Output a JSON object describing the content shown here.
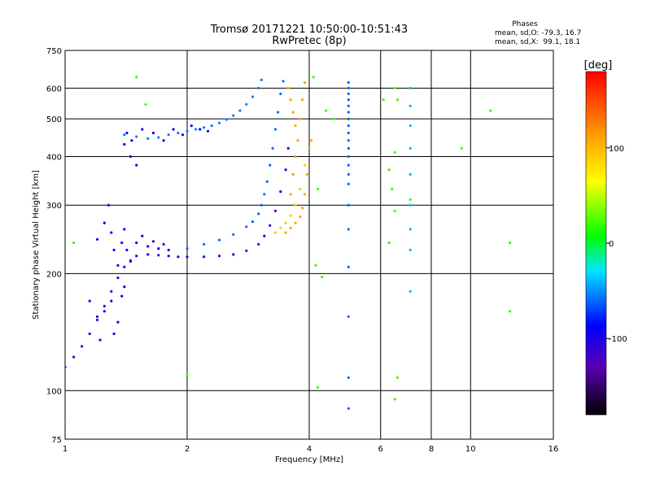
{
  "chart_data": {
    "type": "scatter",
    "title": "Tromsø 20171221 10:50:00-10:51:43",
    "subtitle": "RwPretec (8p)",
    "xlabel": "Frequency [MHz]",
    "ylabel": "Stationary phase Virtual Height [km]",
    "x_scale": "log",
    "y_scale": "log",
    "xlim": [
      1,
      16
    ],
    "ylim": [
      75,
      750
    ],
    "x_ticks": [
      1,
      2,
      4,
      6,
      8,
      10,
      16
    ],
    "x_tick_labels": [
      "1",
      "2",
      "4",
      "6",
      "8",
      "10",
      "16"
    ],
    "y_ticks": [
      75,
      100,
      200,
      300,
      400,
      500,
      600,
      750
    ],
    "y_tick_labels": [
      "75",
      "100",
      "200",
      "300",
      "400",
      "500",
      "600",
      "750"
    ],
    "grid": true,
    "stats": {
      "heading": "Phases",
      "line_o": "mean, sd,O: -79.3, 16.7",
      "line_x": "mean, sd,X:  99.1, 18.1"
    },
    "colorbar": {
      "label": "[deg]",
      "range": [
        -180,
        180
      ],
      "ticks": [
        100,
        0,
        -100
      ],
      "tick_labels": [
        "100",
        "0",
        "-100"
      ]
    },
    "series": [
      {
        "trace": "lower-o-trace",
        "phase_deg": -105,
        "points": [
          [
            1.0,
            115
          ],
          [
            1.05,
            122
          ],
          [
            1.1,
            130
          ],
          [
            1.15,
            140
          ],
          [
            1.2,
            152
          ],
          [
            1.25,
            165
          ],
          [
            1.3,
            180
          ],
          [
            1.35,
            195
          ],
          [
            1.4,
            208
          ],
          [
            1.45,
            216
          ],
          [
            1.5,
            222
          ],
          [
            1.6,
            224
          ],
          [
            1.7,
            223
          ],
          [
            1.8,
            222
          ],
          [
            1.9,
            221
          ],
          [
            2.0,
            221
          ],
          [
            2.2,
            221
          ],
          [
            2.4,
            222
          ],
          [
            2.6,
            224
          ],
          [
            2.8,
            229
          ],
          [
            3.0,
            238
          ],
          [
            3.1,
            250
          ],
          [
            3.2,
            266
          ],
          [
            3.3,
            290
          ],
          [
            3.4,
            325
          ],
          [
            3.5,
            370
          ],
          [
            3.55,
            420
          ]
        ]
      },
      {
        "trace": "scatter-o-cluster",
        "phase_deg": -90,
        "points": [
          [
            1.2,
            245
          ],
          [
            1.25,
            270
          ],
          [
            1.28,
            300
          ],
          [
            1.3,
            255
          ],
          [
            1.32,
            230
          ],
          [
            1.35,
            210
          ],
          [
            1.38,
            240
          ],
          [
            1.4,
            260
          ],
          [
            1.42,
            230
          ],
          [
            1.45,
            215
          ],
          [
            1.5,
            240
          ],
          [
            1.55,
            250
          ],
          [
            1.6,
            235
          ],
          [
            1.65,
            242
          ],
          [
            1.7,
            232
          ],
          [
            1.75,
            238
          ],
          [
            1.8,
            230
          ],
          [
            1.25,
            160
          ],
          [
            1.3,
            170
          ],
          [
            1.32,
            140
          ],
          [
            1.35,
            150
          ],
          [
            1.38,
            175
          ],
          [
            1.4,
            185
          ],
          [
            1.15,
            170
          ],
          [
            1.2,
            155
          ],
          [
            1.22,
            135
          ]
        ]
      },
      {
        "trace": "middle-o-trace",
        "phase_deg": -60,
        "points": [
          [
            2.0,
            232
          ],
          [
            2.2,
            238
          ],
          [
            2.4,
            244
          ],
          [
            2.6,
            252
          ],
          [
            2.8,
            264
          ],
          [
            2.9,
            272
          ],
          [
            3.0,
            285
          ],
          [
            3.05,
            300
          ],
          [
            3.1,
            320
          ],
          [
            3.15,
            345
          ],
          [
            3.2,
            380
          ],
          [
            3.25,
            420
          ],
          [
            3.3,
            470
          ],
          [
            3.35,
            520
          ],
          [
            3.4,
            580
          ],
          [
            3.45,
            625
          ]
        ]
      },
      {
        "trace": "upper-o-trace",
        "phase_deg": -55,
        "points": [
          [
            1.4,
            455
          ],
          [
            1.5,
            450
          ],
          [
            1.6,
            445
          ],
          [
            1.7,
            448
          ],
          [
            1.8,
            455
          ],
          [
            1.9,
            460
          ],
          [
            2.0,
            465
          ],
          [
            2.1,
            470
          ],
          [
            2.2,
            475
          ],
          [
            2.3,
            480
          ],
          [
            2.4,
            488
          ],
          [
            2.5,
            498
          ],
          [
            2.6,
            510
          ],
          [
            2.7,
            525
          ],
          [
            2.8,
            545
          ],
          [
            2.9,
            570
          ],
          [
            3.0,
            600
          ],
          [
            3.05,
            630
          ]
        ]
      },
      {
        "trace": "upper-o-scatter",
        "phase_deg": -95,
        "points": [
          [
            1.4,
            430
          ],
          [
            1.45,
            400
          ],
          [
            1.5,
            380
          ],
          [
            1.42,
            460
          ],
          [
            1.46,
            440
          ],
          [
            1.55,
            470
          ],
          [
            1.65,
            460
          ],
          [
            1.75,
            440
          ],
          [
            1.85,
            470
          ],
          [
            1.95,
            455
          ],
          [
            2.05,
            480
          ],
          [
            2.15,
            470
          ],
          [
            2.25,
            465
          ]
        ]
      },
      {
        "trace": "x-trace",
        "phase_deg": 110,
        "points": [
          [
            3.5,
            255
          ],
          [
            3.6,
            262
          ],
          [
            3.7,
            270
          ],
          [
            3.8,
            280
          ],
          [
            3.85,
            295
          ],
          [
            3.9,
            320
          ],
          [
            3.95,
            360
          ],
          [
            4.0,
            420
          ],
          [
            4.05,
            440
          ],
          [
            3.6,
            320
          ],
          [
            3.65,
            360
          ],
          [
            3.7,
            400
          ],
          [
            3.75,
            440
          ],
          [
            3.8,
            500
          ],
          [
            3.85,
            560
          ],
          [
            3.9,
            620
          ],
          [
            3.55,
            600
          ],
          [
            3.6,
            560
          ],
          [
            3.65,
            520
          ],
          [
            3.7,
            480
          ]
        ]
      },
      {
        "trace": "x-lower",
        "phase_deg": 90,
        "points": [
          [
            3.3,
            255
          ],
          [
            3.4,
            262
          ],
          [
            3.5,
            270
          ],
          [
            3.6,
            282
          ],
          [
            3.7,
            300
          ],
          [
            3.8,
            330
          ],
          [
            3.9,
            380
          ]
        ]
      },
      {
        "trace": "column-5mhz",
        "phase_deg": -60,
        "points": [
          [
            5.0,
            90
          ],
          [
            5.0,
            108
          ],
          [
            5.0,
            155
          ],
          [
            5.0,
            208
          ],
          [
            5.0,
            260
          ],
          [
            5.0,
            300
          ],
          [
            5.0,
            340
          ],
          [
            5.0,
            360
          ],
          [
            5.0,
            380
          ],
          [
            5.0,
            400
          ],
          [
            5.0,
            420
          ],
          [
            5.0,
            440
          ],
          [
            5.0,
            460
          ],
          [
            5.0,
            480
          ],
          [
            5.0,
            500
          ],
          [
            5.0,
            520
          ],
          [
            5.0,
            540
          ],
          [
            5.0,
            560
          ],
          [
            5.0,
            580
          ],
          [
            5.0,
            600
          ],
          [
            5.0,
            620
          ]
        ]
      },
      {
        "trace": "column-7mhz",
        "phase_deg": -40,
        "points": [
          [
            7.1,
            180
          ],
          [
            7.1,
            230
          ],
          [
            7.1,
            260
          ],
          [
            7.1,
            300
          ],
          [
            7.1,
            360
          ],
          [
            7.1,
            420
          ],
          [
            7.1,
            480
          ],
          [
            7.1,
            540
          ],
          [
            7.1,
            600
          ]
        ]
      },
      {
        "trace": "isolated",
        "phase_deg": 20,
        "points": [
          [
            1.05,
            240
          ],
          [
            1.5,
            640
          ],
          [
            1.58,
            545
          ],
          [
            2.0,
            110
          ],
          [
            4.2,
            102
          ],
          [
            4.3,
            196
          ],
          [
            4.15,
            210
          ],
          [
            4.4,
            525
          ],
          [
            4.6,
            500
          ],
          [
            6.3,
            240
          ],
          [
            6.3,
            370
          ],
          [
            6.5,
            95
          ],
          [
            6.6,
            108
          ],
          [
            6.4,
            330
          ],
          [
            6.5,
            410
          ],
          [
            6.6,
            560
          ],
          [
            6.5,
            600
          ],
          [
            7.1,
            310
          ],
          [
            9.5,
            420
          ],
          [
            11.2,
            525
          ],
          [
            12.5,
            240
          ],
          [
            12.5,
            160
          ],
          [
            1.0,
            83
          ],
          [
            4.1,
            640
          ],
          [
            6.1,
            560
          ],
          [
            6.5,
            290
          ],
          [
            4.2,
            330
          ]
        ]
      }
    ]
  }
}
